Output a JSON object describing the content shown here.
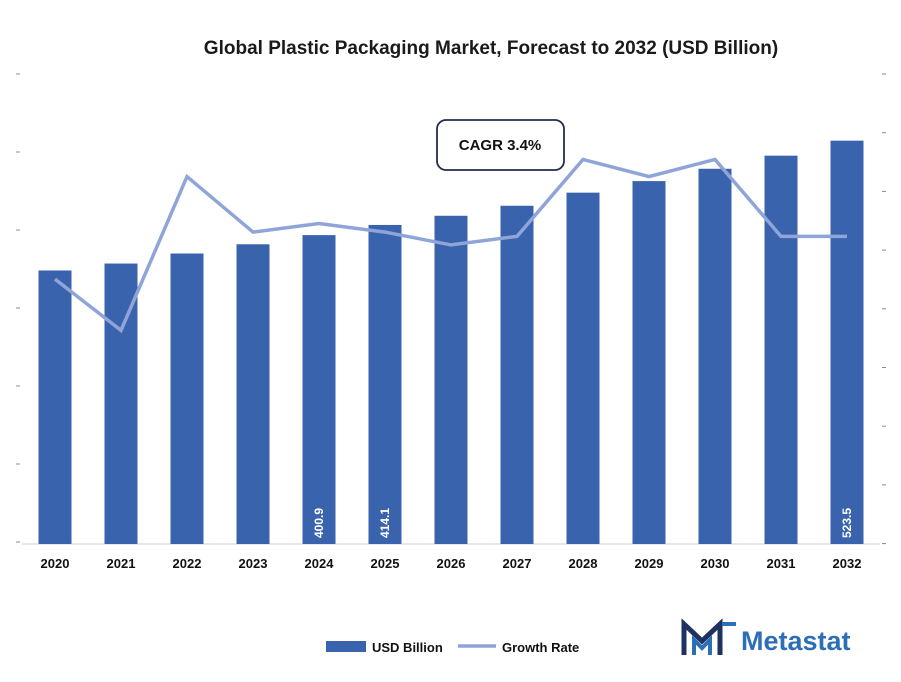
{
  "chart_data": {
    "type": "bar",
    "title": "Global Plastic Packaging Market, Forecast to 2032 (USD Billion)",
    "categories": [
      "2020",
      "2021",
      "2022",
      "2023",
      "2024",
      "2025",
      "2026",
      "2027",
      "2028",
      "2029",
      "2030",
      "2031",
      "2032"
    ],
    "series": [
      {
        "name": "USD Billion",
        "type": "bar",
        "color": "#3a63ad",
        "values": [
          355,
          364,
          377,
          389,
          400.9,
          414.1,
          426,
          439,
          456,
          471,
          487,
          504,
          523.5
        ],
        "data_labels": {
          "4": "400.9",
          "5": "414.1",
          "12": "523.5"
        }
      },
      {
        "name": "Growth Rate",
        "type": "line",
        "color": "#8fa4d8",
        "values": [
          3.1,
          2.5,
          4.3,
          3.65,
          3.75,
          3.65,
          3.5,
          3.6,
          4.5,
          4.3,
          4.5,
          3.6,
          3.6
        ]
      }
    ],
    "ylim": [
      0,
      610
    ],
    "y2lim": [
      0,
      5.5
    ],
    "annotation": "CAGR 3.4%",
    "legend": "bottom"
  },
  "logo": {
    "text": "Metastat",
    "color": "#2d6fb6",
    "dark": "#1e3160"
  }
}
